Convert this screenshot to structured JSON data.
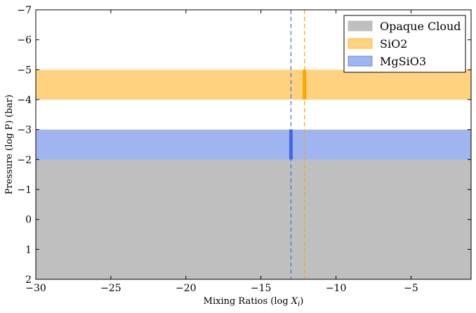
{
  "chart_data": {
    "type": "area",
    "title": "",
    "xlabel": "Mixing Ratios (log X",
    "xlabel_subscript": "i",
    "xlabel_suffix": ")",
    "ylabel": "Pressure (log P) (bar)",
    "xlim": [
      -30,
      -1
    ],
    "ylim": [
      2,
      -7
    ],
    "y_inverted": true,
    "x_ticks": [
      -30,
      -25,
      -20,
      -15,
      -10,
      -5
    ],
    "x_tick_labels": [
      "−30",
      "−25",
      "−20",
      "−15",
      "−10",
      "−5"
    ],
    "y_ticks": [
      -7,
      -6,
      -5,
      -4,
      -3,
      -2,
      -1,
      0,
      1,
      2
    ],
    "y_tick_labels": [
      "−7",
      "−6",
      "−5",
      "−4",
      "−3",
      "−2",
      "−1",
      "0",
      "1",
      "2"
    ],
    "grid": false,
    "legend_position": "top-right",
    "series": [
      {
        "name": "Opaque Cloud",
        "color": "#bfbfbf",
        "opacity": 1.0,
        "y_from": -2,
        "y_to": 2,
        "vline_x": null
      },
      {
        "name": "SiO2",
        "color": "#ffa500",
        "opacity": 0.5,
        "y_from": -5,
        "y_to": -4,
        "vline_x": -12.1
      },
      {
        "name": "MgSiO3",
        "color": "#4169e1",
        "opacity": 0.5,
        "y_from": -3,
        "y_to": -2,
        "vline_x": -13.0
      }
    ]
  }
}
